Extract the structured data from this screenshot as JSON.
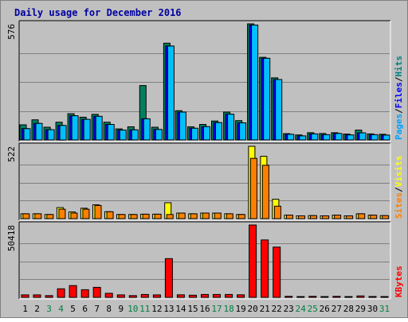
{
  "chart_data": {
    "type": "bar",
    "title": "Daily usage for December 2016",
    "categories": [
      "1",
      "2",
      "3",
      "4",
      "5",
      "6",
      "7",
      "8",
      "9",
      "10",
      "11",
      "12",
      "13",
      "14",
      "15",
      "16",
      "17",
      "18",
      "19",
      "20",
      "21",
      "22",
      "23",
      "24",
      "25",
      "26",
      "27",
      "28",
      "29",
      "30",
      "31"
    ],
    "weekend_days": [
      3,
      4,
      10,
      11,
      17,
      18,
      24,
      25,
      31
    ],
    "panels": [
      {
        "name": "pages-files-hits",
        "max_label": "576",
        "ymax": 576,
        "legend": [
          {
            "text": "Pages",
            "color": "#00a0ff"
          },
          {
            "text": "/",
            "color": "#000000"
          },
          {
            "text": "Files",
            "color": "#0000ff"
          },
          {
            "text": "/",
            "color": "#000000"
          },
          {
            "text": "Hits",
            "color": "#008080"
          }
        ],
        "series": [
          {
            "name": "Hits",
            "color": "#008060",
            "values": [
              75,
              100,
              63,
              88,
              130,
              113,
              127,
              88,
              55,
              65,
              270,
              63,
              480,
              145,
              65,
              77,
              94,
              138,
              96,
              576,
              410,
              308,
              31,
              25,
              36,
              32,
              36,
              29,
              49,
              30,
              28
            ]
          },
          {
            "name": "Files",
            "color": "#0000ff",
            "values": [
              56,
              82,
              51,
              72,
              120,
              102,
              117,
              77,
              49,
              50,
              105,
              52,
              466,
              138,
              58,
              66,
              86,
              128,
              85,
              570,
              405,
              300,
              28,
              20,
              30,
              26,
              32,
              25,
              35,
              26,
              24
            ]
          },
          {
            "name": "Pages",
            "color": "#00bfff",
            "values": [
              56,
              82,
              51,
              72,
              120,
              102,
              117,
              77,
              49,
              50,
              105,
              52,
              466,
              138,
              58,
              66,
              86,
              128,
              85,
              570,
              405,
              300,
              28,
              20,
              30,
              26,
              32,
              25,
              35,
              26,
              24
            ]
          }
        ]
      },
      {
        "name": "visits-sites",
        "max_label": "522",
        "ymax": 522,
        "legend": [
          {
            "text": "Sites",
            "color": "#ff8000"
          },
          {
            "text": "/",
            "color": "#000000"
          },
          {
            "text": "Visits",
            "color": "#ffff00"
          }
        ],
        "series": [
          {
            "name": "Visits",
            "color": "#ffff00",
            "values": [
              35,
              35,
              30,
              80,
              48,
              75,
              100,
              50,
              30,
              30,
              32,
              32,
              115,
              40,
              35,
              40,
              40,
              35,
              30,
              522,
              450,
              140,
              25,
              20,
              22,
              20,
              25,
              20,
              35,
              25,
              22
            ]
          },
          {
            "name": "Sites",
            "color": "#ff8000",
            "values": [
              35,
              35,
              30,
              68,
              40,
              68,
              95,
              50,
              30,
              30,
              32,
              32,
              30,
              40,
              35,
              40,
              40,
              35,
              30,
              435,
              385,
              90,
              25,
              20,
              22,
              20,
              25,
              20,
              35,
              25,
              22
            ]
          }
        ]
      },
      {
        "name": "kbytes",
        "max_label": "50418",
        "ymax": 50418,
        "legend": [
          {
            "text": "KBytes",
            "color": "#ff0000"
          }
        ],
        "series": [
          {
            "name": "KBytes",
            "color": "#ff0000",
            "values": [
              1700,
              1700,
              1200,
              6000,
              8200,
              5300,
              7000,
              2800,
              1700,
              1200,
              2000,
              1700,
              27000,
              1800,
              1500,
              2000,
              2000,
              2000,
              1800,
              50418,
              40000,
              35000,
              700,
              300,
              700,
              300,
              700,
              300,
              1000,
              600,
              500
            ]
          }
        ]
      }
    ]
  },
  "colors": {
    "panel_bg": "#c0c0c0",
    "frame_bg": "#ffffff",
    "title_color": "#0000a0",
    "weekday_label": "#000000",
    "weekend_label": "#008040"
  }
}
